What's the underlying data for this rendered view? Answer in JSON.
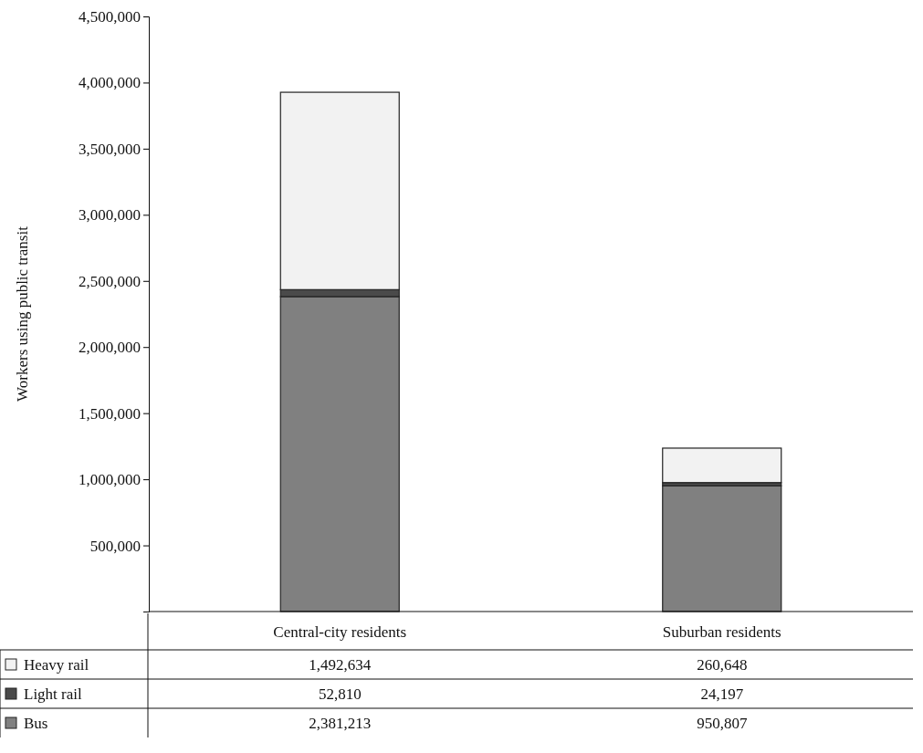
{
  "chart_data": {
    "type": "bar",
    "ylabel": "Workers using public transit",
    "categories": [
      "Central-city residents",
      "Suburban residents"
    ],
    "stacked": true,
    "legend": "bottom",
    "ylim": [
      0,
      4500000
    ],
    "yticks": [
      {
        "value": 500000,
        "label": "500,000"
      },
      {
        "value": 1000000,
        "label": "1,000,000"
      },
      {
        "value": 1500000,
        "label": "1,500,000"
      },
      {
        "value": 2000000,
        "label": "2,000,000"
      },
      {
        "value": 2500000,
        "label": "2,500,000"
      },
      {
        "value": 3000000,
        "label": "3,000,000"
      },
      {
        "value": 3500000,
        "label": "3,500,000"
      },
      {
        "value": 4000000,
        "label": "4,000,000"
      },
      {
        "value": 4500000,
        "label": "4,500,000"
      }
    ],
    "series": [
      {
        "name": "Bus",
        "color": "#808080",
        "values": [
          2381213,
          950807
        ],
        "value_labels": [
          "2,381,213",
          "950,807"
        ]
      },
      {
        "name": "Light rail",
        "color": "#4a4a4a",
        "values": [
          52810,
          24197
        ],
        "value_labels": [
          "52,810",
          "24,197"
        ]
      },
      {
        "name": "Heavy rail",
        "color": "#f2f2f2",
        "values": [
          1492634,
          260648
        ],
        "value_labels": [
          "1,492,634",
          "260,648"
        ]
      }
    ]
  }
}
